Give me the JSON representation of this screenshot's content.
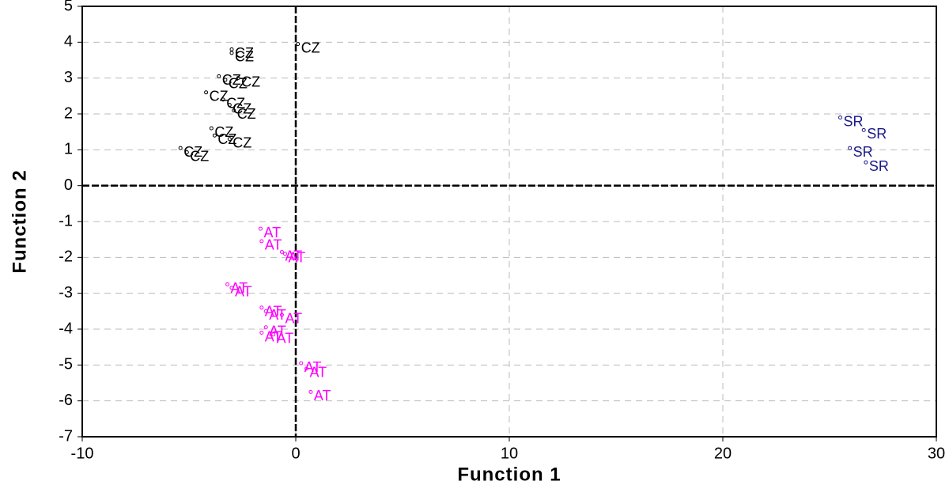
{
  "chart_data": {
    "type": "scatter",
    "x_label": "Function 1",
    "y_label": "Function 2",
    "xlim": [
      -10,
      30
    ],
    "xticks": [
      -10,
      0,
      10,
      20,
      30
    ],
    "ylim": [
      -7,
      5
    ],
    "yticks": [
      -7,
      -6,
      -5,
      -4,
      -3,
      -2,
      -1,
      0,
      1,
      2,
      3,
      4,
      5
    ],
    "grid": true,
    "series": [
      {
        "name": "CZ",
        "color": "#000000",
        "x": [
          0.1,
          -3.0,
          -3.0,
          -3.6,
          -3.3,
          -2.7,
          -4.2,
          -3.4,
          -3.1,
          -2.9,
          -3.95,
          -3.8,
          -3.1,
          -5.4,
          -5.1
        ],
        "values": [
          3.95,
          3.8,
          3.7,
          3.05,
          2.95,
          3.0,
          2.6,
          2.4,
          2.25,
          2.1,
          1.6,
          1.4,
          1.3,
          1.05,
          0.93
        ]
      },
      {
        "name": "AT",
        "color": "#ff00ff",
        "x": [
          -1.65,
          -1.6,
          -0.65,
          -0.5,
          -3.2,
          -3.0,
          -1.6,
          -1.4,
          -0.65,
          -1.4,
          -1.6,
          -1.05,
          0.25,
          0.5,
          0.7
        ],
        "values": [
          -1.2,
          -1.55,
          -1.85,
          -1.9,
          -2.75,
          -2.85,
          -3.4,
          -3.5,
          -3.6,
          -3.95,
          -4.1,
          -4.15,
          -4.95,
          -5.1,
          -5.75
        ]
      },
      {
        "name": "SR",
        "color": "#1a1a8c",
        "x": [
          25.5,
          26.6,
          25.95,
          26.7
        ],
        "values": [
          1.9,
          1.55,
          1.05,
          0.65
        ]
      }
    ]
  }
}
